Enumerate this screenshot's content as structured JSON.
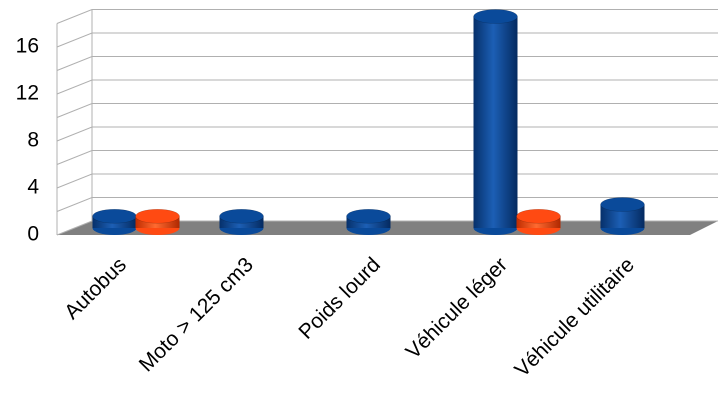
{
  "chart_data": {
    "type": "bar3d",
    "categories": [
      "Autobus",
      "Moto > 125 cm3",
      "Poids lourd",
      "Véhicule léger",
      "Véhicule utilitaire"
    ],
    "series": [
      {
        "color": "#0a4a9a",
        "values": [
          1,
          1,
          1,
          18,
          2
        ]
      },
      {
        "color": "#ff4a12",
        "values": [
          1,
          0,
          0,
          1,
          0
        ]
      }
    ],
    "ylim": [
      0,
      18
    ],
    "yticks": [
      0,
      4,
      8,
      12,
      16
    ],
    "minor_yticks": [
      2,
      6,
      10,
      14,
      18
    ],
    "grid": true
  }
}
